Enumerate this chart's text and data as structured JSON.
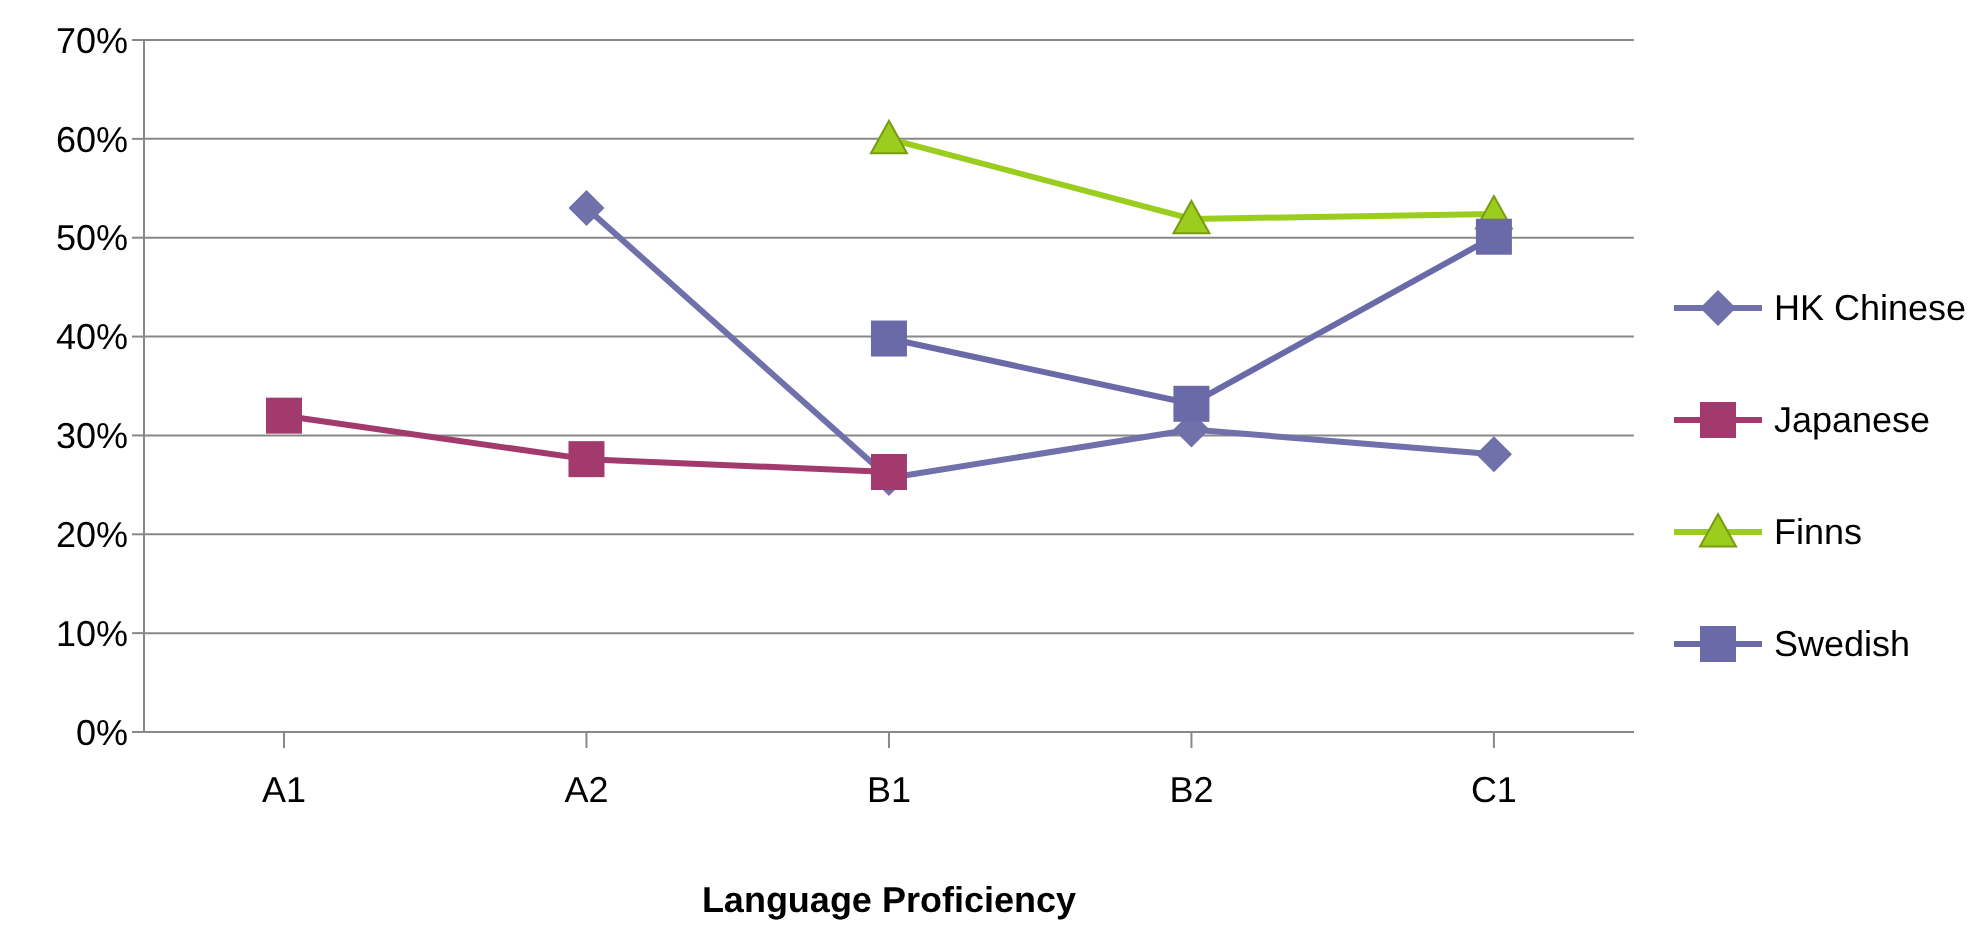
{
  "chart_data": {
    "type": "line",
    "xlabel": "Language Proficiency",
    "categories": [
      "A1",
      "A2",
      "B1",
      "B2",
      "C1"
    ],
    "series": [
      {
        "name": "HK Chinese",
        "color": "#7070aa",
        "marker": "diamond",
        "values": [
          null,
          53,
          25.7,
          30.6,
          28.1
        ]
      },
      {
        "name": "Japanese",
        "color": "#a33a6e",
        "marker": "square",
        "values": [
          32,
          27.6,
          26.3,
          null,
          null
        ]
      },
      {
        "name": "Finns",
        "color": "#9acd1e",
        "marker": "triangle",
        "values": [
          null,
          null,
          60,
          51.9,
          52.4
        ]
      },
      {
        "name": "Swedish",
        "color": "#6a6aa8",
        "marker": "square",
        "values": [
          null,
          null,
          39.8,
          33.2,
          50.1
        ]
      }
    ],
    "ylim": [
      0,
      70
    ],
    "yticks": [
      {
        "value": 0,
        "label": "0%"
      },
      {
        "value": 10,
        "label": "10%"
      },
      {
        "value": 20,
        "label": "20%"
      },
      {
        "value": 30,
        "label": "30%"
      },
      {
        "value": 40,
        "label": "40%"
      },
      {
        "value": 50,
        "label": "50%"
      },
      {
        "value": 60,
        "label": "60%"
      },
      {
        "value": 70,
        "label": "70%"
      }
    ],
    "grid": "y",
    "legend": "right"
  }
}
